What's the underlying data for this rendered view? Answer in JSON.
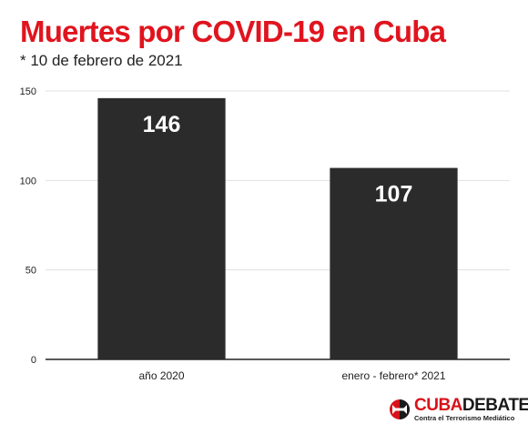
{
  "chart_data": {
    "type": "bar",
    "title": "Muertes por COVID-19 en Cuba",
    "subtitle": "* 10 de febrero de 2021",
    "categories": [
      "año 2020",
      "enero - febrero* 2021"
    ],
    "values": [
      146,
      107
    ],
    "data_labels": [
      "146",
      "107"
    ],
    "y_ticks": [
      "0",
      "50",
      "100",
      "150"
    ],
    "ylim": [
      0,
      150
    ],
    "xlabel": "",
    "ylabel": "",
    "grid": true,
    "legend": "none"
  },
  "logo": {
    "name": "CUBADEBATE",
    "tagline": "Contra el Terrorismo Mediático"
  },
  "colors": {
    "title": "#e0141e",
    "bar": "#2b2b2b",
    "grid": "#e0e0e0",
    "logo_red": "#d8121a"
  }
}
